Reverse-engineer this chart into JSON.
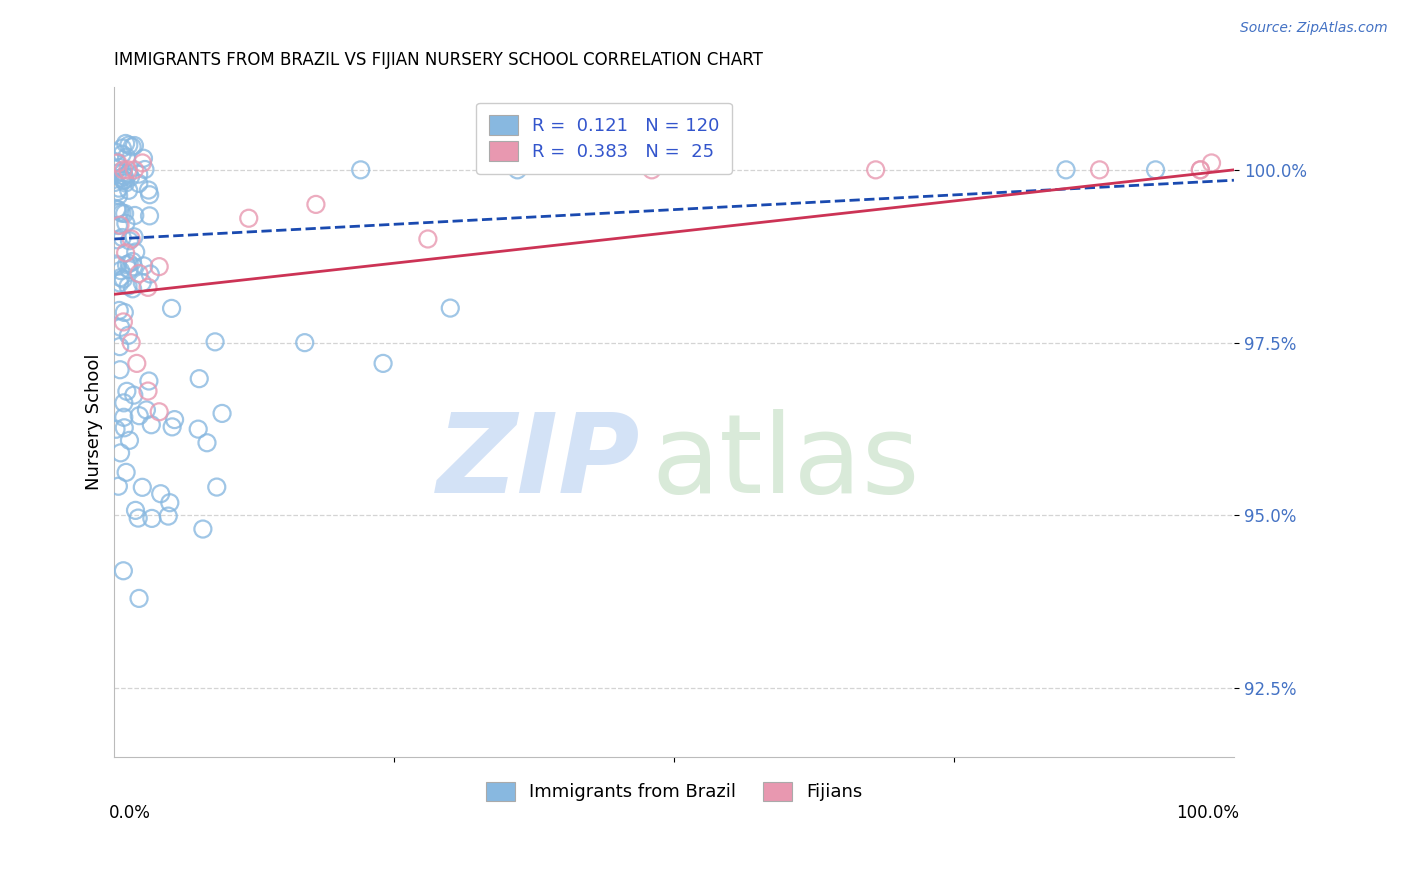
{
  "title": "IMMIGRANTS FROM BRAZIL VS FIJIAN NURSERY SCHOOL CORRELATION CHART",
  "source": "Source: ZipAtlas.com",
  "ylabel": "Nursery School",
  "xlim": [
    0.0,
    1.0
  ],
  "ylim": [
    91.5,
    101.2
  ],
  "brazil_color": "#88b8e0",
  "fijian_color": "#e898b0",
  "brazil_line_color": "#1a4ab0",
  "fijian_line_color": "#cc3355",
  "background_color": "#ffffff",
  "grid_color": "#d0d0d0",
  "yticks": [
    92.5,
    95.0,
    97.5,
    100.0
  ],
  "ytick_labels": [
    "92.5%",
    "95.0%",
    "97.5%",
    "100.0%"
  ],
  "brazil_N": 120,
  "fijian_N": 25,
  "brazil_R": 0.121,
  "fijian_R": 0.383,
  "watermark_zip_color": "#ccddf5",
  "watermark_atlas_color": "#c5dfc5",
  "title_fontsize": 12,
  "tick_fontsize": 12,
  "legend_fontsize": 13,
  "source_fontsize": 10
}
